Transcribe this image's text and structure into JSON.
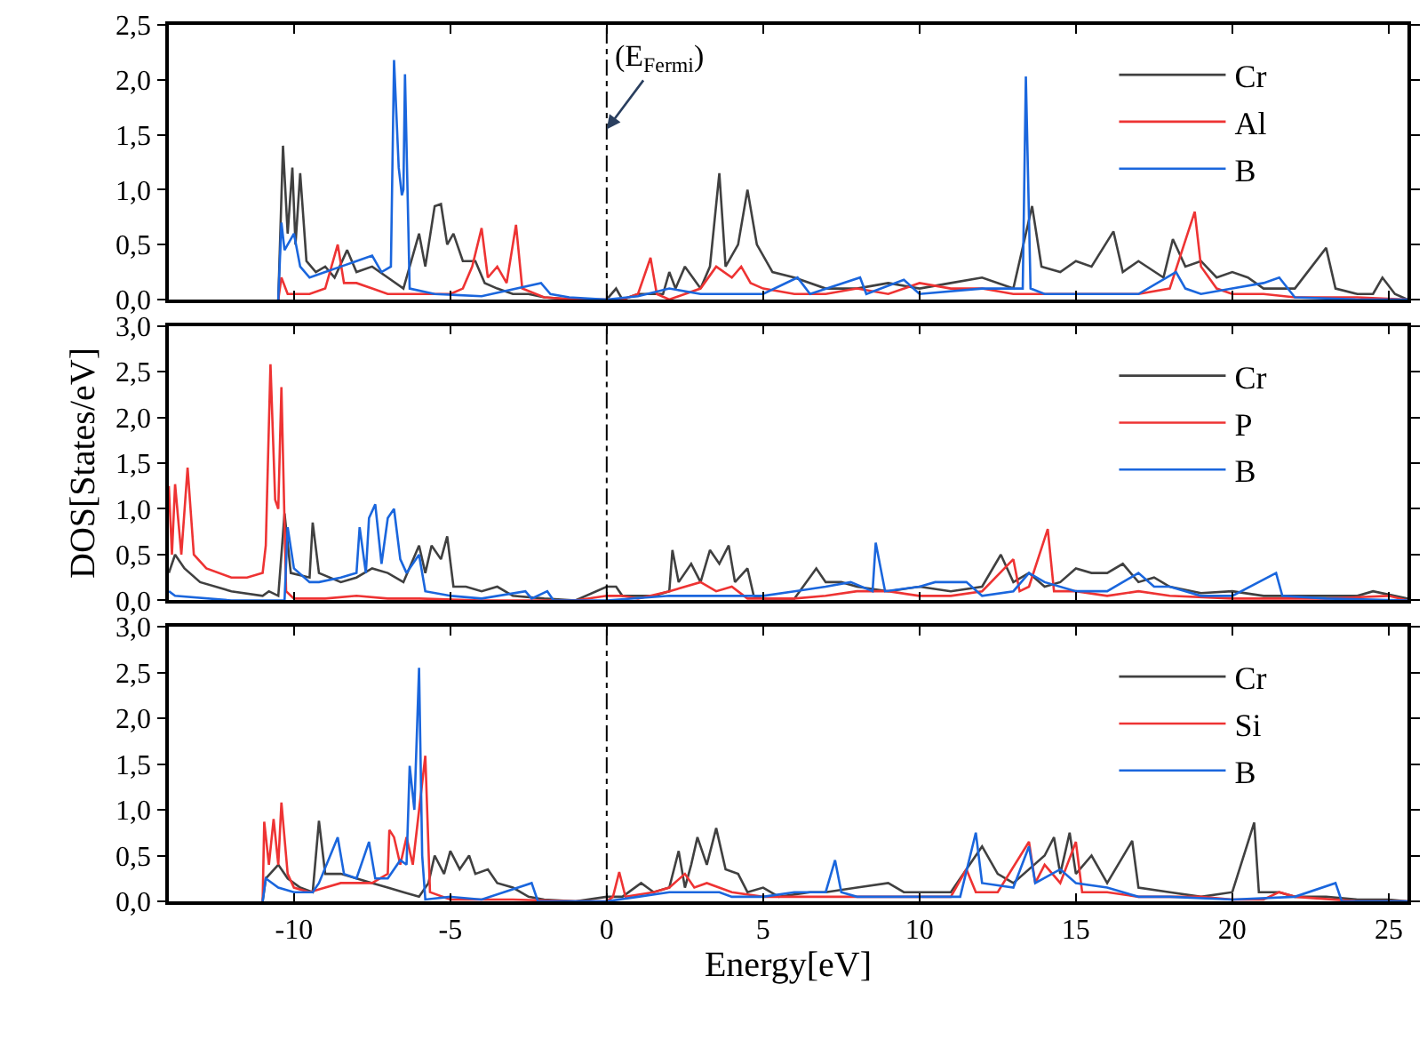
{
  "chart_data": [
    {
      "type": "line",
      "xlim": [
        -14,
        25.6
      ],
      "xticks": [
        -10,
        -5,
        0,
        5,
        10,
        15,
        20,
        25
      ],
      "ylim": [
        0,
        2.5
      ],
      "tick_labels": "y",
      "legend": "top right",
      "yticks": [
        {
          "value": 0,
          "label": "0,0"
        },
        {
          "value": 0.5,
          "label": "0,5"
        },
        {
          "value": 1,
          "label": "1,0"
        },
        {
          "value": 1.5,
          "label": "1,5"
        },
        {
          "value": 2,
          "label": "2,0"
        },
        {
          "value": 2.5,
          "label": "2,5"
        }
      ],
      "ref_lines": [
        {
          "axis": "x",
          "value": 0,
          "color": "#000000",
          "line_style": "dashed"
        }
      ],
      "annotations": [
        {
          "text": "(E$_{Fermi}$)",
          "x": 0,
          "y": 1.55
        }
      ],
      "series": [
        {
          "name": "Cr",
          "color": "#404040",
          "x": [
            -10.5,
            -10.35,
            -10.2,
            -10.05,
            -9.95,
            -9.8,
            -9.6,
            -9.3,
            -9.0,
            -8.7,
            -8.3,
            -8.0,
            -7.5,
            -7.0,
            -6.5,
            -6.0,
            -5.8,
            -5.5,
            -5.3,
            -5.1,
            -4.9,
            -4.6,
            -4.2,
            -3.9,
            -3.5,
            -3.0,
            -2.5,
            -2.0,
            -1.5,
            -1.0,
            0.0,
            0.3,
            0.5,
            1.0,
            1.8,
            2.0,
            2.2,
            2.5,
            3.0,
            3.3,
            3.6,
            3.8,
            4.2,
            4.5,
            4.8,
            5.3,
            6.0,
            7.0,
            8.0,
            9.0,
            10.0,
            11.0,
            12.0,
            13.0,
            13.6,
            13.9,
            14.5,
            15.0,
            15.5,
            16.2,
            16.5,
            17.0,
            17.8,
            18.1,
            18.5,
            19.0,
            19.5,
            20.0,
            20.5,
            21.0,
            22.0,
            23.0,
            23.3,
            24.0,
            24.5,
            24.8,
            25.2,
            25.6
          ],
          "values": [
            0,
            1.4,
            0.6,
            1.2,
            0.5,
            1.15,
            0.35,
            0.25,
            0.3,
            0.2,
            0.45,
            0.25,
            0.3,
            0.2,
            0.1,
            0.6,
            0.3,
            0.85,
            0.87,
            0.5,
            0.6,
            0.35,
            0.35,
            0.15,
            0.1,
            0.05,
            0.05,
            0.02,
            0.01,
            0,
            0,
            0.1,
            0,
            0.05,
            0.05,
            0.25,
            0.1,
            0.3,
            0.1,
            0.3,
            1.15,
            0.3,
            0.5,
            1.0,
            0.5,
            0.25,
            0.2,
            0.1,
            0.1,
            0.15,
            0.1,
            0.15,
            0.2,
            0.1,
            0.85,
            0.3,
            0.25,
            0.35,
            0.3,
            0.62,
            0.25,
            0.35,
            0.2,
            0.55,
            0.3,
            0.35,
            0.2,
            0.25,
            0.2,
            0.1,
            0.1,
            0.47,
            0.1,
            0.05,
            0.05,
            0.2,
            0.05,
            0
          ]
        },
        {
          "name": "Al",
          "color": "#ee3333",
          "x": [
            -10.5,
            -10.4,
            -10.2,
            -9.5,
            -9.0,
            -8.6,
            -8.4,
            -8.0,
            -7.5,
            -7.0,
            -6.0,
            -5.0,
            -4.6,
            -4.3,
            -4.0,
            -3.8,
            -3.5,
            -3.2,
            -2.9,
            -2.7,
            -2.0,
            -1.0,
            0.0,
            0.5,
            1.0,
            1.4,
            1.6,
            2.0,
            3.0,
            3.5,
            4.0,
            4.3,
            4.6,
            5.0,
            6.0,
            7.0,
            8.0,
            9.0,
            10.0,
            11.0,
            12.0,
            13.0,
            14.0,
            15.0,
            17.0,
            18.0,
            18.8,
            19.0,
            19.5,
            20.0,
            21.0,
            22.0,
            24.0,
            25.6
          ],
          "values": [
            0,
            0.2,
            0.05,
            0.05,
            0.1,
            0.5,
            0.15,
            0.15,
            0.1,
            0.05,
            0.05,
            0.05,
            0.1,
            0.3,
            0.65,
            0.2,
            0.3,
            0.15,
            0.68,
            0.1,
            0.02,
            0,
            0,
            0,
            0.05,
            0.38,
            0.05,
            0,
            0.1,
            0.3,
            0.2,
            0.3,
            0.15,
            0.1,
            0.05,
            0.05,
            0.1,
            0.05,
            0.15,
            0.1,
            0.1,
            0.05,
            0.05,
            0.05,
            0.05,
            0.1,
            0.8,
            0.3,
            0.1,
            0.05,
            0.05,
            0.02,
            0.02,
            0
          ]
        },
        {
          "name": "B",
          "color": "#1a66dd",
          "x": [
            -10.5,
            -10.4,
            -10.3,
            -10.0,
            -9.8,
            -9.5,
            -9.0,
            -8.5,
            -8.0,
            -7.5,
            -7.2,
            -6.9,
            -6.8,
            -6.65,
            -6.55,
            -6.5,
            -6.45,
            -6.3,
            -5.5,
            -4.0,
            -2.1,
            -1.8,
            -1.2,
            0.0,
            1.0,
            2.0,
            3.0,
            4.0,
            5.0,
            6.1,
            6.5,
            8.1,
            8.3,
            9.5,
            10.0,
            12.0,
            13.3,
            13.4,
            13.55,
            14.0,
            16.0,
            17.0,
            18.2,
            18.5,
            19.0,
            20.0,
            21.0,
            21.5,
            22.0,
            24.0,
            25.6
          ],
          "values": [
            0,
            0.7,
            0.45,
            0.6,
            0.3,
            0.2,
            0.25,
            0.3,
            0.35,
            0.4,
            0.25,
            0.3,
            2.18,
            1.2,
            0.95,
            1.0,
            2.05,
            0.1,
            0.05,
            0.03,
            0.15,
            0.05,
            0.02,
            0,
            0.03,
            0.1,
            0.05,
            0.05,
            0.05,
            0.2,
            0.05,
            0.2,
            0.05,
            0.18,
            0.05,
            0.1,
            0.1,
            2.03,
            0.1,
            0.05,
            0.05,
            0.05,
            0.25,
            0.1,
            0.05,
            0.1,
            0.15,
            0.2,
            0.02,
            0,
            0
          ]
        }
      ]
    },
    {
      "type": "line",
      "xlim": [
        -14,
        25.6
      ],
      "xticks": [
        -10,
        -5,
        0,
        5,
        10,
        15,
        20,
        25
      ],
      "ylim": [
        0,
        3
      ],
      "tick_labels": "y",
      "legend": "top right",
      "ylabel": "DOS[States/eV]",
      "yticks": [
        {
          "value": 0,
          "label": "0,0"
        },
        {
          "value": 0.5,
          "label": "0,5"
        },
        {
          "value": 1,
          "label": "1,0"
        },
        {
          "value": 1.5,
          "label": "1,5"
        },
        {
          "value": 2,
          "label": "2,0"
        },
        {
          "value": 2.5,
          "label": "2,5"
        },
        {
          "value": 3,
          "label": "3,0"
        }
      ],
      "ref_lines": [
        {
          "axis": "x",
          "value": 0,
          "color": "#000000",
          "line_style": "dashed"
        }
      ],
      "series": [
        {
          "name": "Cr",
          "color": "#404040",
          "x": [
            -14.0,
            -13.8,
            -13.5,
            -13.0,
            -12.0,
            -11.0,
            -10.8,
            -10.5,
            -10.3,
            -10.1,
            -9.5,
            -9.4,
            -9.2,
            -8.5,
            -8.0,
            -7.5,
            -7.0,
            -6.5,
            -6.0,
            -5.8,
            -5.6,
            -5.3,
            -5.1,
            -4.9,
            -4.5,
            -4.0,
            -3.5,
            -3.0,
            -2.0,
            -1.0,
            0.0,
            0.3,
            0.5,
            1.0,
            1.5,
            2.0,
            2.1,
            2.3,
            2.7,
            3.0,
            3.3,
            3.6,
            3.9,
            4.1,
            4.5,
            4.7,
            5.0,
            6.0,
            6.7,
            7.0,
            7.5,
            8.0,
            9.0,
            10.0,
            11.0,
            12.0,
            12.6,
            13.0,
            13.5,
            14.0,
            14.5,
            15.0,
            15.5,
            16.0,
            16.5,
            17.0,
            17.5,
            18.0,
            19.0,
            20.0,
            21.0,
            22.0,
            23.0,
            24.0,
            24.5,
            25.6
          ],
          "values": [
            0.3,
            0.5,
            0.35,
            0.2,
            0.1,
            0.05,
            0.1,
            0.05,
            0.95,
            0.3,
            0.25,
            0.85,
            0.3,
            0.2,
            0.25,
            0.35,
            0.3,
            0.2,
            0.6,
            0.3,
            0.6,
            0.45,
            0.7,
            0.15,
            0.15,
            0.1,
            0.15,
            0.05,
            0.02,
            0,
            0.15,
            0.15,
            0.05,
            0.05,
            0.05,
            0.1,
            0.55,
            0.2,
            0.4,
            0.2,
            0.55,
            0.4,
            0.6,
            0.2,
            0.35,
            0.05,
            0.02,
            0.02,
            0.35,
            0.2,
            0.2,
            0.15,
            0.1,
            0.15,
            0.1,
            0.15,
            0.5,
            0.2,
            0.3,
            0.15,
            0.2,
            0.35,
            0.3,
            0.3,
            0.4,
            0.2,
            0.25,
            0.15,
            0.08,
            0.1,
            0.05,
            0.05,
            0.05,
            0.05,
            0.1,
            0.02
          ]
        },
        {
          "name": "P",
          "color": "#ee3333",
          "x": [
            -14.0,
            -13.9,
            -13.8,
            -13.6,
            -13.4,
            -13.2,
            -12.8,
            -12.0,
            -11.5,
            -11.0,
            -10.9,
            -10.75,
            -10.6,
            -10.5,
            -10.4,
            -10.25,
            -10.0,
            -9.0,
            -8.0,
            -7.0,
            -6.0,
            -4.0,
            -1.0,
            0.0,
            0.5,
            1.0,
            2.0,
            3.0,
            3.5,
            4.0,
            4.5,
            6.0,
            7.0,
            8.0,
            9.0,
            10.0,
            11.0,
            12.0,
            13.0,
            13.2,
            13.5,
            14.1,
            14.3,
            15.0,
            16.0,
            17.0,
            18.0,
            20.0,
            22.0,
            23.0,
            25.0,
            25.6
          ],
          "values": [
            1.25,
            0.5,
            1.27,
            0.5,
            1.45,
            0.5,
            0.35,
            0.25,
            0.25,
            0.3,
            0.6,
            2.58,
            1.1,
            1.0,
            2.33,
            0.1,
            0.02,
            0.02,
            0.05,
            0.02,
            0.02,
            0,
            0,
            0.05,
            0.05,
            0.02,
            0.1,
            0.2,
            0.1,
            0.15,
            0.02,
            0.02,
            0.05,
            0.1,
            0.1,
            0.05,
            0.05,
            0.1,
            0.45,
            0.1,
            0.15,
            0.78,
            0.1,
            0.1,
            0.05,
            0.1,
            0.05,
            0.02,
            0.02,
            0.02,
            0.05,
            0
          ]
        },
        {
          "name": "B",
          "color": "#1a66dd",
          "x": [
            -14.0,
            -13.8,
            -12.0,
            -10.3,
            -10.2,
            -10.0,
            -9.5,
            -9.2,
            -8.5,
            -8.0,
            -7.9,
            -7.7,
            -7.6,
            -7.4,
            -7.2,
            -7.0,
            -6.8,
            -6.6,
            -6.4,
            -6.0,
            -5.8,
            -5.0,
            -4.0,
            -2.6,
            -2.4,
            -1.9,
            -1.7,
            0.0,
            2.0,
            3.0,
            5.0,
            6.0,
            7.0,
            7.8,
            8.5,
            8.6,
            8.9,
            10.0,
            10.5,
            11.5,
            12.0,
            13.0,
            13.5,
            14.0,
            15.0,
            16.0,
            17.0,
            17.5,
            18.0,
            19.0,
            20.0,
            21.4,
            21.6,
            23.0,
            25.6
          ],
          "values": [
            0.1,
            0.05,
            0,
            0,
            0.8,
            0.35,
            0.2,
            0.2,
            0.25,
            0.3,
            0.8,
            0.3,
            0.9,
            1.05,
            0.4,
            0.9,
            1.0,
            0.45,
            0.3,
            0.5,
            0.1,
            0.05,
            0.02,
            0.1,
            0.02,
            0.1,
            0,
            0,
            0.05,
            0.05,
            0.05,
            0.1,
            0.15,
            0.2,
            0.1,
            0.63,
            0.1,
            0.15,
            0.2,
            0.2,
            0.05,
            0.1,
            0.3,
            0.2,
            0.1,
            0.1,
            0.3,
            0.15,
            0.15,
            0.05,
            0.05,
            0.3,
            0.05,
            0.02,
            0
          ]
        }
      ]
    },
    {
      "type": "line",
      "xlim": [
        -14,
        25.6
      ],
      "xticks": [
        -10,
        -5,
        0,
        5,
        10,
        15,
        20,
        25
      ],
      "ylim": [
        0,
        3
      ],
      "legend": "top right",
      "xlabel": "Energy[eV]",
      "yticks": [
        {
          "value": 0,
          "label": "0,0"
        },
        {
          "value": 0.5,
          "label": "0,5"
        },
        {
          "value": 1,
          "label": "1,0"
        },
        {
          "value": 1.5,
          "label": "1,5"
        },
        {
          "value": 2,
          "label": "2,0"
        },
        {
          "value": 2.5,
          "label": "2,5"
        },
        {
          "value": 3,
          "label": "3,0"
        }
      ],
      "ref_lines": [
        {
          "axis": "x",
          "value": 0,
          "color": "#000000",
          "line_style": "dashed"
        }
      ],
      "series": [
        {
          "name": "Cr",
          "color": "#404040",
          "x": [
            -11.0,
            -10.9,
            -10.5,
            -10.2,
            -9.8,
            -9.4,
            -9.2,
            -9.0,
            -8.5,
            -8.0,
            -7.5,
            -7.0,
            -6.5,
            -6.0,
            -5.7,
            -5.5,
            -5.2,
            -5.0,
            -4.7,
            -4.4,
            -4.2,
            -3.8,
            -3.5,
            -3.0,
            -2.5,
            -2.0,
            -1.0,
            0.0,
            0.5,
            1.1,
            1.5,
            2.0,
            2.3,
            2.5,
            2.7,
            2.9,
            3.2,
            3.5,
            3.8,
            4.2,
            4.5,
            5.0,
            5.5,
            6.5,
            7.0,
            8.0,
            9.0,
            9.5,
            10.0,
            11.0,
            12.0,
            12.5,
            13.0,
            14.0,
            14.3,
            14.5,
            14.8,
            15.0,
            15.5,
            16.0,
            16.8,
            17.0,
            18.0,
            19.0,
            20.0,
            20.7,
            20.85,
            21.5,
            22.0,
            23.0,
            24.0,
            25.0,
            25.6
          ],
          "values": [
            0,
            0.25,
            0.4,
            0.25,
            0.15,
            0.1,
            0.88,
            0.3,
            0.3,
            0.25,
            0.2,
            0.15,
            0.1,
            0.05,
            0.2,
            0.5,
            0.3,
            0.55,
            0.35,
            0.5,
            0.3,
            0.35,
            0.2,
            0.15,
            0.05,
            0.02,
            0,
            0.05,
            0.05,
            0.2,
            0.1,
            0.15,
            0.55,
            0.15,
            0.4,
            0.7,
            0.4,
            0.8,
            0.35,
            0.3,
            0.1,
            0.15,
            0.05,
            0.1,
            0.1,
            0.15,
            0.2,
            0.1,
            0.1,
            0.1,
            0.6,
            0.3,
            0.2,
            0.5,
            0.7,
            0.3,
            0.75,
            0.3,
            0.5,
            0.2,
            0.66,
            0.15,
            0.1,
            0.05,
            0.1,
            0.86,
            0.1,
            0.1,
            0.05,
            0.05,
            0.02,
            0.02,
            0
          ]
        },
        {
          "name": "Si",
          "color": "#ee3333",
          "x": [
            -11.0,
            -10.95,
            -10.8,
            -10.65,
            -10.5,
            -10.4,
            -10.2,
            -10.0,
            -9.5,
            -9.0,
            -8.5,
            -8.0,
            -7.5,
            -7.0,
            -6.95,
            -6.8,
            -6.6,
            -6.4,
            -6.2,
            -5.8,
            -5.65,
            -5.0,
            -3.0,
            -1.0,
            0.0,
            0.2,
            0.4,
            0.6,
            1.5,
            2.0,
            2.5,
            2.8,
            3.2,
            4.0,
            5.0,
            6.0,
            7.0,
            8.0,
            9.0,
            10.0,
            11.0,
            11.5,
            11.8,
            12.5,
            13.5,
            13.7,
            14.0,
            14.5,
            15.0,
            15.2,
            16.0,
            17.0,
            19.0,
            20.0,
            21.0,
            21.5,
            22.0,
            24.0,
            25.6
          ],
          "values": [
            0,
            0.87,
            0.4,
            0.9,
            0.4,
            1.08,
            0.3,
            0.15,
            0.1,
            0.15,
            0.2,
            0.2,
            0.2,
            0.3,
            0.78,
            0.7,
            0.4,
            0.7,
            0.4,
            1.59,
            0.1,
            0.02,
            0.02,
            0,
            0,
            0.05,
            0.32,
            0.05,
            0.1,
            0.15,
            0.3,
            0.15,
            0.2,
            0.1,
            0.05,
            0.05,
            0.05,
            0.05,
            0.05,
            0.05,
            0.05,
            0.35,
            0.1,
            0.1,
            0.65,
            0.2,
            0.4,
            0.2,
            0.65,
            0.1,
            0.1,
            0.05,
            0.05,
            0.02,
            0.02,
            0.1,
            0.05,
            0,
            0
          ]
        },
        {
          "name": "B",
          "color": "#1a66dd",
          "x": [
            -11.0,
            -10.9,
            -10.5,
            -10.0,
            -9.4,
            -9.2,
            -8.6,
            -8.4,
            -8.0,
            -7.6,
            -7.4,
            -7.0,
            -6.6,
            -6.4,
            -6.3,
            -6.15,
            -6.0,
            -5.9,
            -5.8,
            -5.0,
            -4.0,
            -2.4,
            -2.2,
            0.0,
            1.0,
            2.0,
            3.0,
            3.6,
            4.0,
            5.0,
            6.0,
            7.0,
            7.3,
            7.5,
            8.0,
            9.0,
            10.0,
            11.3,
            11.8,
            12.0,
            13.0,
            13.5,
            13.7,
            14.5,
            15.0,
            16.0,
            17.0,
            18.0,
            20.0,
            22.0,
            23.3,
            23.5,
            25.6
          ],
          "values": [
            0,
            0.25,
            0.15,
            0.1,
            0.1,
            0.2,
            0.7,
            0.3,
            0.25,
            0.65,
            0.25,
            0.25,
            0.45,
            0.4,
            1.48,
            1.0,
            2.55,
            0.5,
            0.02,
            0.05,
            0.02,
            0.2,
            0,
            0,
            0.05,
            0.1,
            0.1,
            0.1,
            0.05,
            0.05,
            0.1,
            0.1,
            0.45,
            0.1,
            0.05,
            0.05,
            0.05,
            0.05,
            0.75,
            0.2,
            0.15,
            0.6,
            0.2,
            0.35,
            0.2,
            0.15,
            0.05,
            0.05,
            0.02,
            0.05,
            0.2,
            0,
            0
          ]
        }
      ]
    }
  ]
}
